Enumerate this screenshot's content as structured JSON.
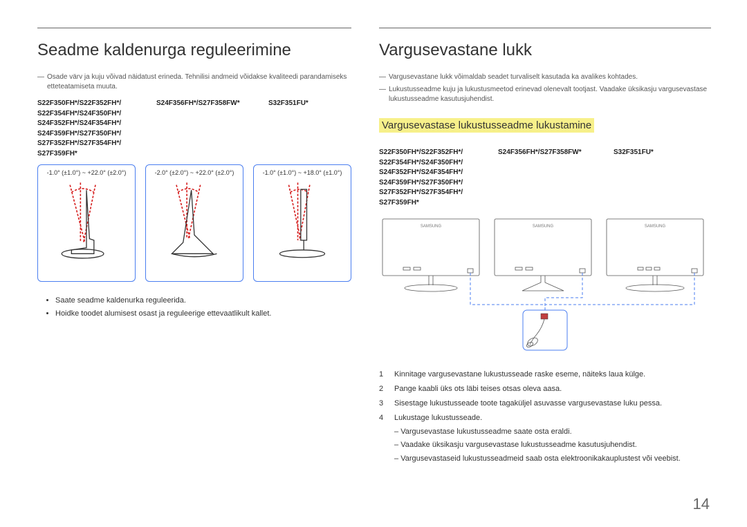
{
  "pageNumber": "14",
  "left": {
    "heading": "Seadme kaldenurga reguleerimine",
    "note": "Osade värv ja kuju võivad näidatust erineda. Tehnilisi andmeid võidakse kvaliteedi parandamiseks etteteatamiseta muuta.",
    "models": {
      "col1": "S22F350FH*/S22F352FH*/\nS22F354FH*/S24F350FH*/\nS24F352FH*/S24F354FH*/\nS24F359FH*/S27F350FH*/\nS27F352FH*/S27F354FH*/\nS27F359FH*",
      "col2": "S24F356FH*/S27F358FW*",
      "col3": "S32F351FU*"
    },
    "angles": {
      "box1": "-1.0° (±1.0°) ~ +22.0° (±2.0°)",
      "box2": "-2.0° (±2.0°) ~ +22.0° (±2.0°)",
      "box3": "-1.0° (±1.0°) ~ +18.0° (±1.0°)"
    },
    "bullets": [
      "Saate seadme kaldenurka reguleerida.",
      "Hoidke toodet alumisest osast ja reguleerige ettevaatlikult kallet."
    ]
  },
  "right": {
    "heading": "Vargusevastane lukk",
    "notes": [
      "Vargusevastane lukk võimaldab seadet turvaliselt kasutada ka avalikes kohtades.",
      "Lukustusseadme kuju ja lukustusmeetod erinevad olenevalt tootjast. Vaadake üksikasju vargusevastase lukustusseadme kasutusjuhendist."
    ],
    "subheading": "Vargusevastase lukustusseadme lukustamine",
    "models": {
      "col1": "S22F350FH*/S22F352FH*/\nS22F354FH*/S24F350FH*/\nS24F352FH*/S24F354FH*/\nS24F359FH*/S27F350FH*/\nS27F352FH*/S27F354FH*/\nS27F359FH*",
      "col2": "S24F356FH*/S27F358FW*",
      "col3": "S32F351FU*"
    },
    "monitorLabel": "SAMSUNG",
    "steps": [
      "Kinnitage vargusevastane lukustusseade raske eseme, näiteks laua külge.",
      "Pange kaabli üks ots läbi teises otsas oleva aasa.",
      "Sisestage lukustusseade toote tagaküljel asuvasse vargusevastase luku pessa.",
      "Lukustage lukustusseade."
    ],
    "substeps": [
      "Vargusevastase lukustusseadme saate osta eraldi.",
      "Vaadake üksikasju vargusevastase lukustusseadme kasutusjuhendist.",
      "Vargusevastaseid lukustusseadmeid saab osta elektroonikakauplustest või veebist."
    ]
  },
  "colors": {
    "blue": "#4a7ef0",
    "red": "#d62020",
    "highlight": "#f7f08a"
  }
}
